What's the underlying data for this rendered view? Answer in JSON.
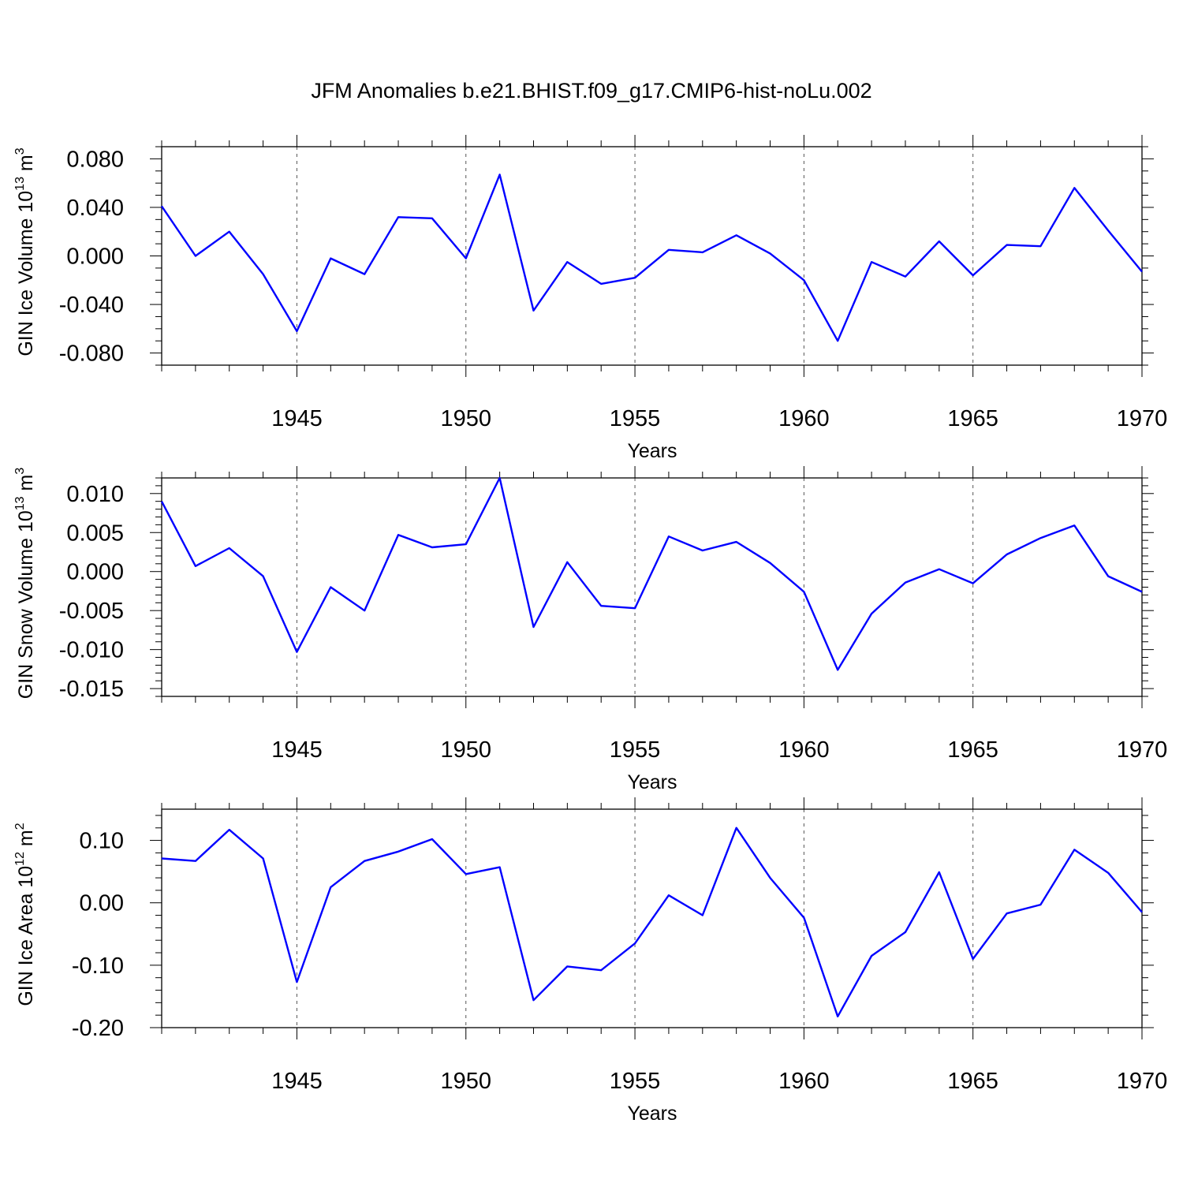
{
  "chart_data": {
    "type": "line",
    "title": "JFM Anomalies b.e21.BHIST.f09_g17.CMIP6-hist-noLu.002",
    "series_color": "#0000ff",
    "x": [
      1941,
      1942,
      1943,
      1944,
      1945,
      1946,
      1947,
      1948,
      1949,
      1950,
      1951,
      1952,
      1953,
      1954,
      1955,
      1956,
      1957,
      1958,
      1959,
      1960,
      1961,
      1962,
      1963,
      1964,
      1965,
      1966,
      1967,
      1968,
      1969,
      1970
    ],
    "xlim": [
      1941,
      1970
    ],
    "xlabel": "Years",
    "xticks": [
      1945,
      1950,
      1955,
      1960,
      1965,
      1970
    ],
    "xtick_labels": [
      "1945",
      "1950",
      "1955",
      "1960",
      "1965",
      "1970"
    ],
    "grid": "dashed vertical lines at major x ticks",
    "panels": [
      {
        "ylabel_main": "GIN Ice Volume 10",
        "ylabel_exp": "13",
        "ylabel_unit": " m",
        "ylabel_unit_exp": "3",
        "ylim": [
          -0.09,
          0.09
        ],
        "yticks": [
          -0.08,
          -0.04,
          0.0,
          0.04,
          0.08
        ],
        "ytick_labels": [
          "-0.080",
          "-0.040",
          "0.000",
          "0.040",
          "0.080"
        ],
        "y_minor_step": 0.01,
        "values": [
          0.041,
          0.0,
          0.02,
          -0.015,
          -0.062,
          -0.002,
          -0.015,
          0.032,
          0.031,
          -0.002,
          0.067,
          -0.045,
          -0.005,
          -0.023,
          -0.018,
          0.005,
          0.003,
          0.017,
          0.002,
          -0.02,
          -0.07,
          -0.005,
          -0.017,
          0.012,
          -0.016,
          0.009,
          0.008,
          0.056,
          0.021,
          -0.013
        ]
      },
      {
        "ylabel_main": "GIN Snow Volume 10",
        "ylabel_exp": "13",
        "ylabel_unit": " m",
        "ylabel_unit_exp": "3",
        "ylim": [
          -0.016,
          0.012
        ],
        "yticks": [
          -0.015,
          -0.01,
          -0.005,
          0.0,
          0.005,
          0.01
        ],
        "ytick_labels": [
          "-0.015",
          "-0.010",
          "-0.005",
          "0.000",
          "0.005",
          "0.010"
        ],
        "y_minor_step": 0.001,
        "values": [
          0.009,
          0.0007,
          0.003,
          -0.0006,
          -0.0103,
          -0.002,
          -0.005,
          0.0047,
          0.0031,
          0.0035,
          0.012,
          -0.0071,
          0.0012,
          -0.0044,
          -0.0047,
          0.0045,
          0.0027,
          0.0038,
          0.0011,
          -0.0026,
          -0.0126,
          -0.0054,
          -0.0014,
          0.0003,
          -0.0015,
          0.0022,
          0.0043,
          0.0059,
          -0.0006,
          -0.0026
        ]
      },
      {
        "ylabel_main": "GIN Ice Area 10",
        "ylabel_exp": "12",
        "ylabel_unit": " m",
        "ylabel_unit_exp": "2",
        "ylim": [
          -0.2,
          0.15
        ],
        "yticks": [
          -0.2,
          -0.1,
          0.0,
          0.1
        ],
        "ytick_labels": [
          "-0.20",
          "-0.10",
          "0.00",
          "0.10"
        ],
        "y_minor_step": 0.02,
        "values": [
          0.071,
          0.067,
          0.117,
          0.071,
          -0.127,
          0.025,
          0.067,
          0.082,
          0.102,
          0.046,
          0.057,
          -0.156,
          -0.102,
          -0.108,
          -0.065,
          0.012,
          -0.02,
          0.12,
          0.04,
          -0.024,
          -0.182,
          -0.085,
          -0.047,
          0.049,
          -0.09,
          -0.017,
          -0.003,
          0.085,
          0.048,
          -0.015
        ]
      }
    ]
  }
}
